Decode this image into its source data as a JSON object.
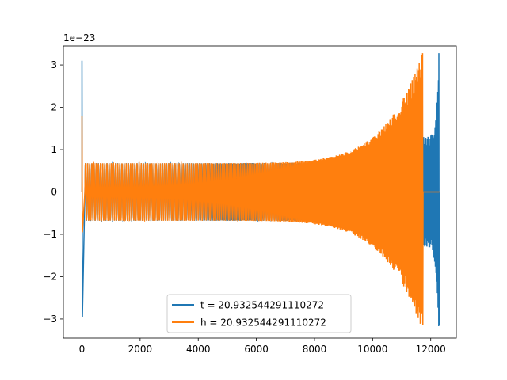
{
  "chart_data": {
    "type": "line",
    "title": "",
    "xlabel": "",
    "ylabel": "",
    "y_scale_label": "1e−23",
    "xlim": [
      -640,
      12880
    ],
    "ylim": [
      -3.45,
      3.45
    ],
    "x_ticks": [
      0,
      2000,
      4000,
      6000,
      8000,
      10000,
      12000
    ],
    "x_tick_labels": [
      "0",
      "2000",
      "4000",
      "6000",
      "8000",
      "10000",
      "12000"
    ],
    "y_ticks": [
      -3,
      -2,
      -1,
      0,
      1,
      2,
      3
    ],
    "y_tick_labels": [
      "−3",
      "−2",
      "−1",
      "0",
      "1",
      "2",
      "3"
    ],
    "grid": false,
    "legend_position": "lower-center",
    "series": [
      {
        "name": "t = 20.932544291110272",
        "color": "#1f77b4",
        "start_spike": {
          "x": 0,
          "max": 3.1,
          "min": -2.95
        },
        "chirp": {
          "x_start": 100,
          "x_merge": 11700,
          "x_end": 12280,
          "amp_start": 0.68,
          "amp_merge": 1.3,
          "amp_end_max": 3.28,
          "amp_end_min": -3.15
        },
        "tail_value": 0
      },
      {
        "name": "h = 20.932544291110272",
        "color": "#ff7f0e",
        "start_spike": {
          "x": 0,
          "max": 1.8,
          "min": -0.95
        },
        "chirp": {
          "x_start": 100,
          "x_end": 11720,
          "amp_start": 0.68,
          "amp_end_max": 3.28,
          "amp_end_min": -3.15
        },
        "tail_start": 11720,
        "tail_end": 12300,
        "tail_value": 0
      }
    ]
  }
}
